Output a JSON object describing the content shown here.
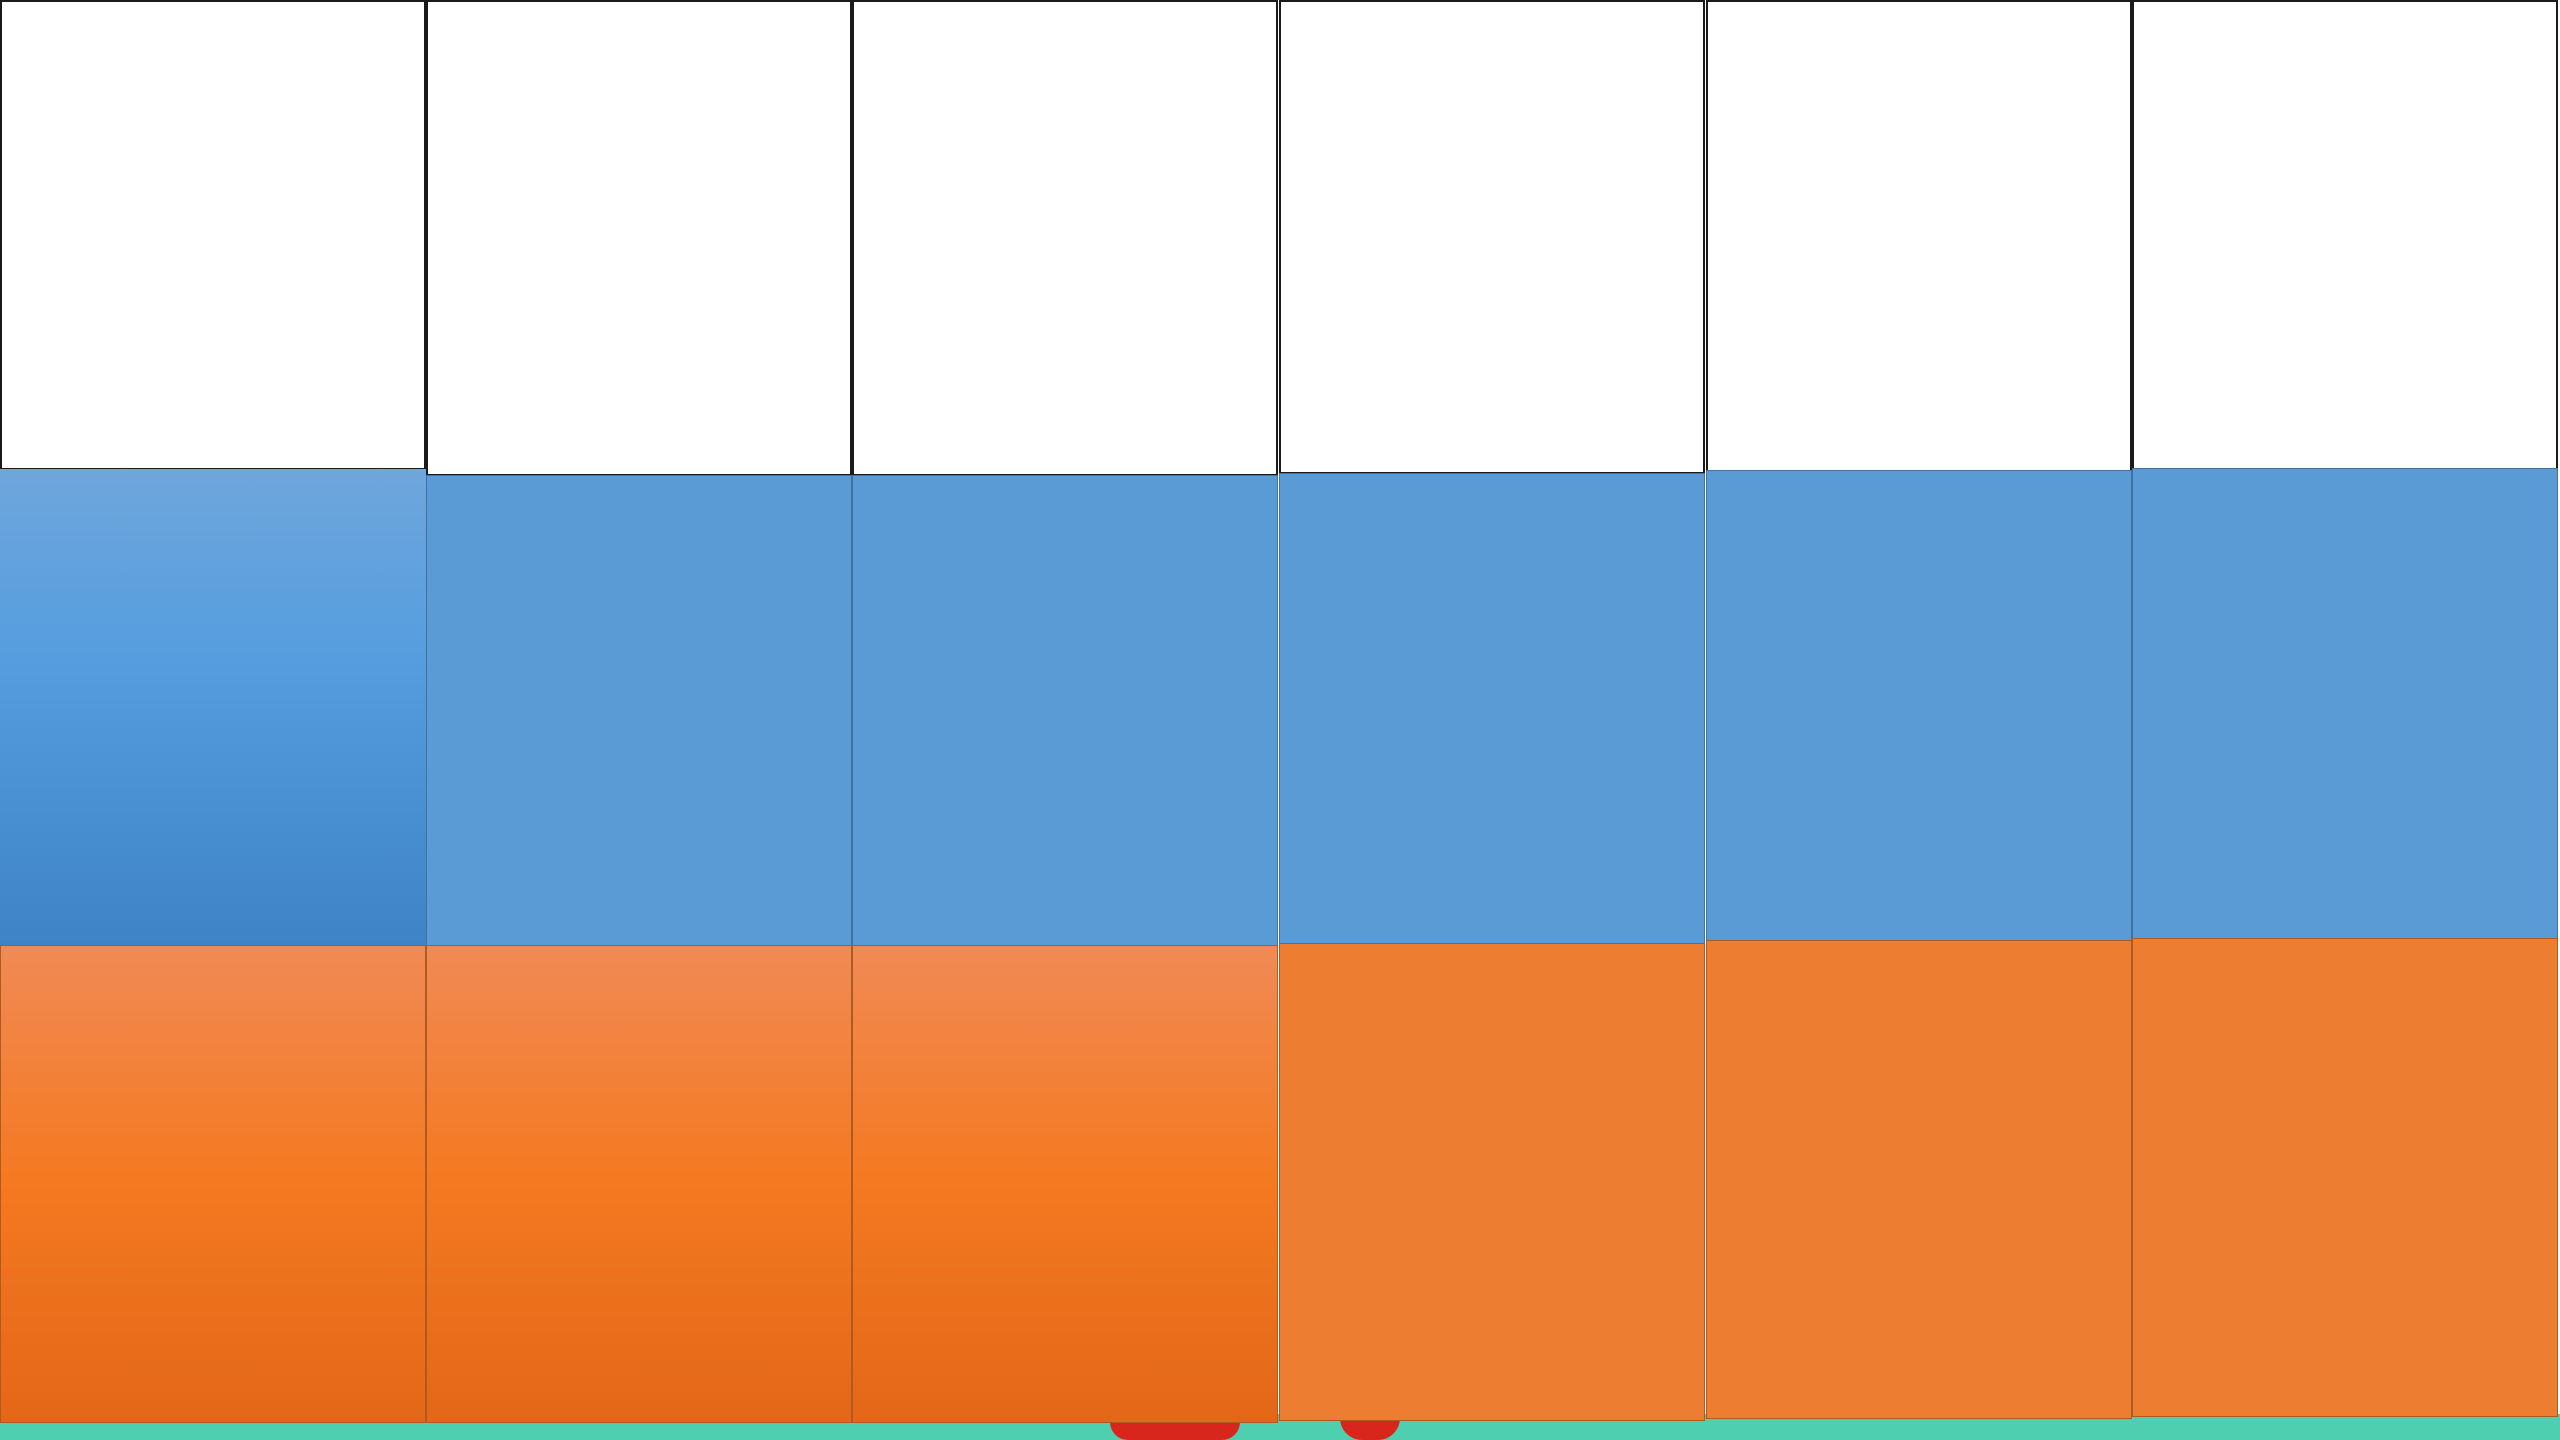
{
  "colors": {
    "blue": "#5b9bd5",
    "orange": "#ed7d31",
    "teal": "#4ecfb0",
    "red": "#d8261c",
    "grid_border": "#1a1a1a"
  },
  "columns": [
    {
      "id": 1,
      "blue_style": "gradient",
      "orange_style": "gradient"
    },
    {
      "id": 2,
      "blue_style": "flat",
      "orange_style": "gradient"
    },
    {
      "id": 3,
      "blue_style": "flat",
      "orange_style": "gradient"
    },
    {
      "id": 4,
      "blue_style": "flat",
      "orange_style": "flat"
    },
    {
      "id": 5,
      "blue_style": "flat",
      "orange_style": "flat"
    },
    {
      "id": 6,
      "blue_style": "flat",
      "orange_style": "flat"
    }
  ]
}
